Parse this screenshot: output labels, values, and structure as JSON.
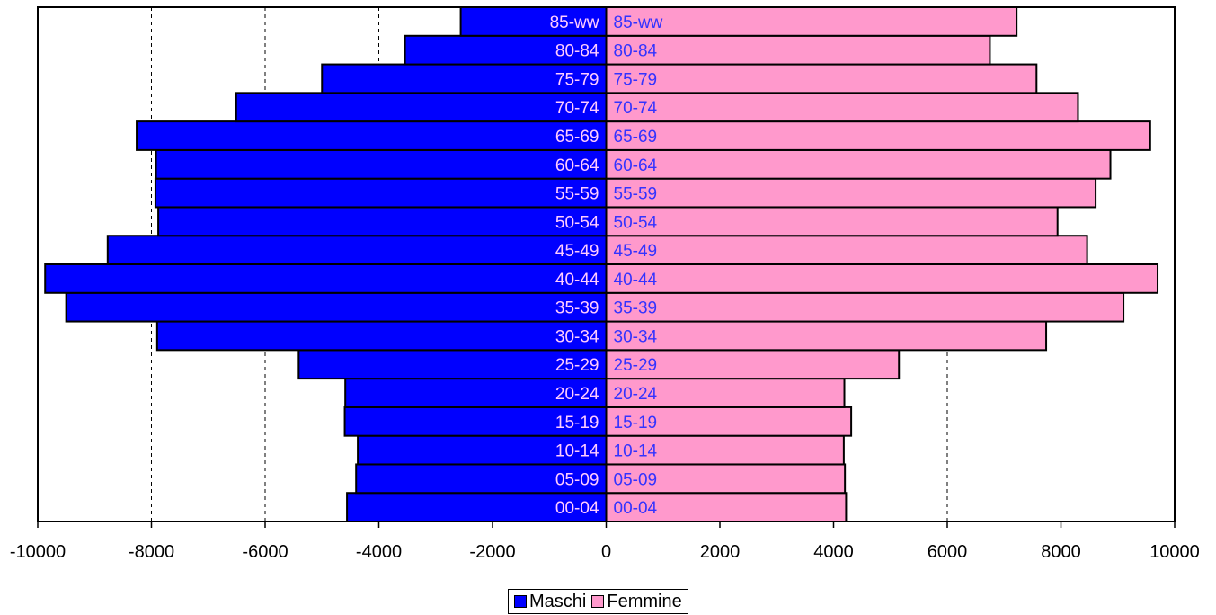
{
  "chart_data": {
    "type": "bar",
    "orientation": "horizontal",
    "categories": [
      "00-04",
      "05-09",
      "10-14",
      "15-19",
      "20-24",
      "25-29",
      "30-34",
      "35-39",
      "40-44",
      "45-49",
      "50-54",
      "55-59",
      "60-64",
      "65-69",
      "70-74",
      "75-79",
      "80-84",
      "85-ww"
    ],
    "series": [
      {
        "name": "Maschi",
        "color": "#0000ff",
        "values": [
          -4560,
          -4400,
          -4370,
          -4600,
          -4590,
          -5410,
          -7900,
          -9500,
          -9870,
          -8770,
          -7880,
          -7930,
          -7920,
          -8260,
          -6510,
          -5000,
          -3540,
          -2560
        ]
      },
      {
        "name": "Femmine",
        "color": "#ff99cc",
        "values": [
          4220,
          4200,
          4180,
          4310,
          4190,
          5150,
          7740,
          9100,
          9700,
          8460,
          7940,
          8610,
          8870,
          9570,
          8300,
          7570,
          6750,
          7220
        ]
      }
    ],
    "xlim": [
      -10000,
      10000
    ],
    "xticks": [
      -10000,
      -8000,
      -6000,
      -4000,
      -2000,
      0,
      2000,
      4000,
      6000,
      8000,
      10000
    ],
    "grid": "vertical dashed",
    "legend_position": "bottom-center",
    "bar_label_color": "#ffccff",
    "bar_label_color_right": "#3333ff"
  }
}
